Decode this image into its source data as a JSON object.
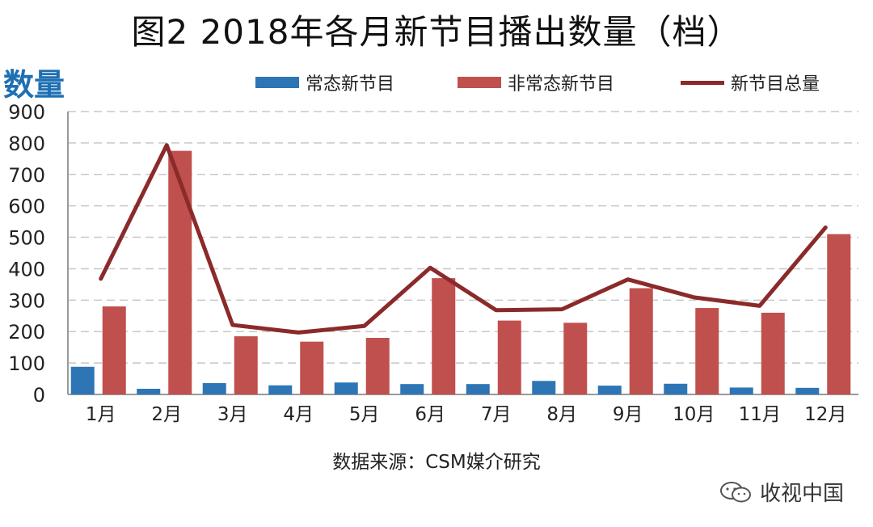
{
  "title": "图2  2018年各月新节目播出数量（档）",
  "y_unit_label": "数量",
  "source": "数据来源：CSM媒介研究",
  "watermark": "收视中国",
  "legend": {
    "regular": "常态新节目",
    "irregular": "非常态新节目",
    "total": "新节目总量"
  },
  "colors": {
    "regular": "#2e75b6",
    "irregular": "#c0504d",
    "total": "#8b2a2a",
    "grid": "#c8c8c8",
    "axis": "#999999"
  },
  "chart_data": {
    "type": "bar",
    "categories": [
      "1月",
      "2月",
      "3月",
      "4月",
      "5月",
      "6月",
      "7月",
      "8月",
      "9月",
      "10月",
      "11月",
      "12月"
    ],
    "series": [
      {
        "name": "常态新节目",
        "type": "bar",
        "values": [
          88,
          18,
          36,
          29,
          38,
          33,
          33,
          43,
          28,
          34,
          22,
          21
        ]
      },
      {
        "name": "非常态新节目",
        "type": "bar",
        "values": [
          280,
          775,
          185,
          168,
          180,
          370,
          235,
          228,
          338,
          275,
          260,
          510
        ]
      },
      {
        "name": "新节目总量",
        "type": "line",
        "values": [
          368,
          793,
          221,
          197,
          218,
          403,
          268,
          271,
          366,
          309,
          282,
          531
        ]
      }
    ],
    "ylim": [
      0,
      900
    ],
    "yticks": [
      0,
      100,
      200,
      300,
      400,
      500,
      600,
      700,
      800,
      900
    ],
    "ylabel": "数量",
    "xlabel": "",
    "grid": true,
    "legend_position": "top"
  }
}
